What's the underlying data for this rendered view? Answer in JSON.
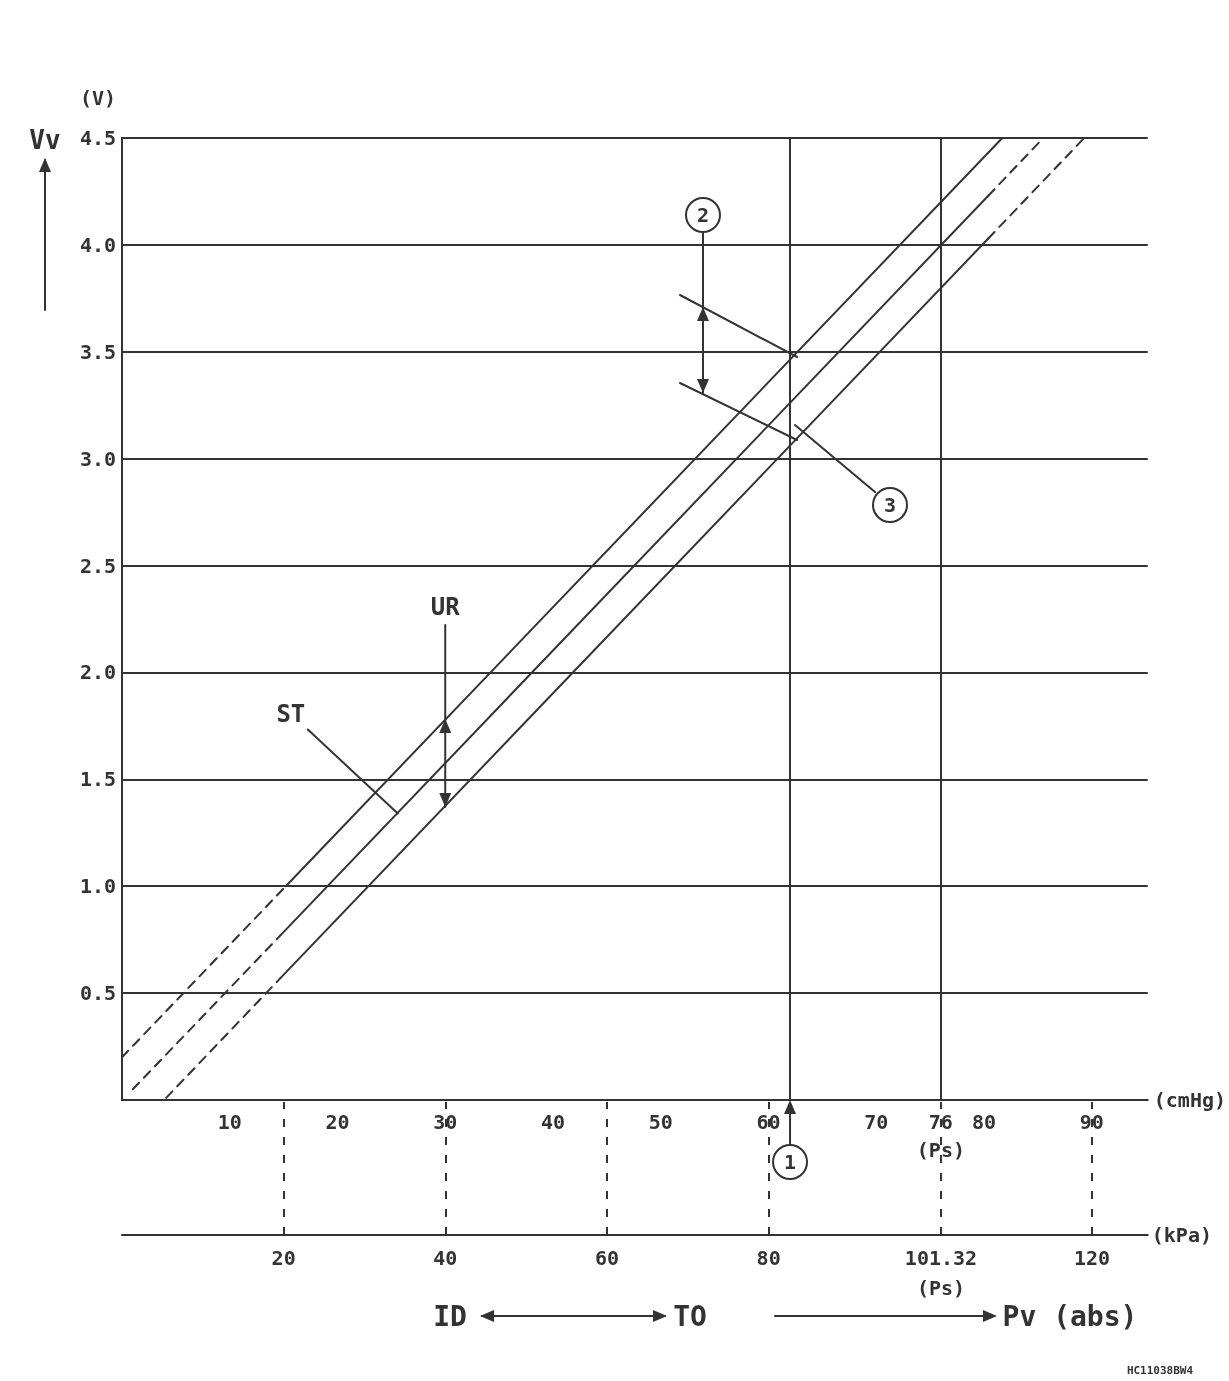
{
  "chart_data": {
    "type": "line",
    "ylabel": "Vv",
    "xlabel": "(cmHg)",
    "x2label": "(kPa)",
    "xlim": [
      0,
      95.2
    ],
    "xticks": [
      10,
      20,
      30,
      40,
      50,
      60,
      70,
      {
        "value": 76,
        "label": "76\n(Ps)"
      },
      80,
      90
    ],
    "x2lim": [
      0,
      126.9
    ],
    "x2ticks": [
      20,
      40,
      60,
      80,
      {
        "value": 101.32,
        "label": "101.32\n(Ps)"
      },
      120
    ],
    "ylim": [
      0,
      4.5
    ],
    "yticks": [
      0.5,
      {
        "value": 1,
        "label": "1.0"
      },
      1.5,
      {
        "value": 2,
        "label": "2.0"
      },
      2.5,
      {
        "value": 3,
        "label": "3.0"
      },
      3.5,
      {
        "value": 4,
        "label": "4.0"
      },
      4.5
    ],
    "grid": "y",
    "marker": "none",
    "series": [
      {
        "color": "#333333",
        "line_style": "dashed",
        "x": [
          0,
          15.2
        ],
        "values": [
          0.2,
          1.0
        ]
      },
      {
        "color": "#333333",
        "line_style": "solid",
        "x": [
          15.2,
          81.7
        ],
        "values": [
          1.0,
          4.5
        ]
      },
      {
        "color": "#333333",
        "line_style": "dashed",
        "x": [
          1,
          14.7
        ],
        "values": [
          0.05,
          0.77
        ]
      },
      {
        "color": "#333333",
        "line_style": "solid",
        "x": [
          14.7,
          80.4
        ],
        "values": [
          0.77,
          4.23
        ]
      },
      {
        "color": "#333333",
        "line_style": "dashed",
        "x": [
          80.4,
          85.5
        ],
        "values": [
          4.23,
          4.5
        ]
      },
      {
        "color": "#333333",
        "line_style": "dashed",
        "x": [
          4.1,
          14.7
        ],
        "values": [
          0.01,
          0.57
        ]
      },
      {
        "color": "#333333",
        "line_style": "solid",
        "x": [
          14.7,
          80.4
        ],
        "values": [
          0.57,
          4.03
        ]
      },
      {
        "color": "#333333",
        "line_style": "dashed",
        "x": [
          80.4,
          89.3
        ],
        "values": [
          4.03,
          4.5
        ]
      }
    ],
    "ref_lines": [
      {
        "axis": "x",
        "value": 62
      },
      {
        "axis": "x",
        "value": 76
      }
    ],
    "annotations": [
      {
        "text": "UR",
        "x": 30,
        "y": 1.37
      },
      {
        "text": "ST",
        "x": 25.6,
        "y": 1.34
      },
      "2",
      "3",
      "1",
      "(V)",
      "ID",
      "TO",
      "Pv (abs)",
      "HC11038BW4"
    ]
  }
}
